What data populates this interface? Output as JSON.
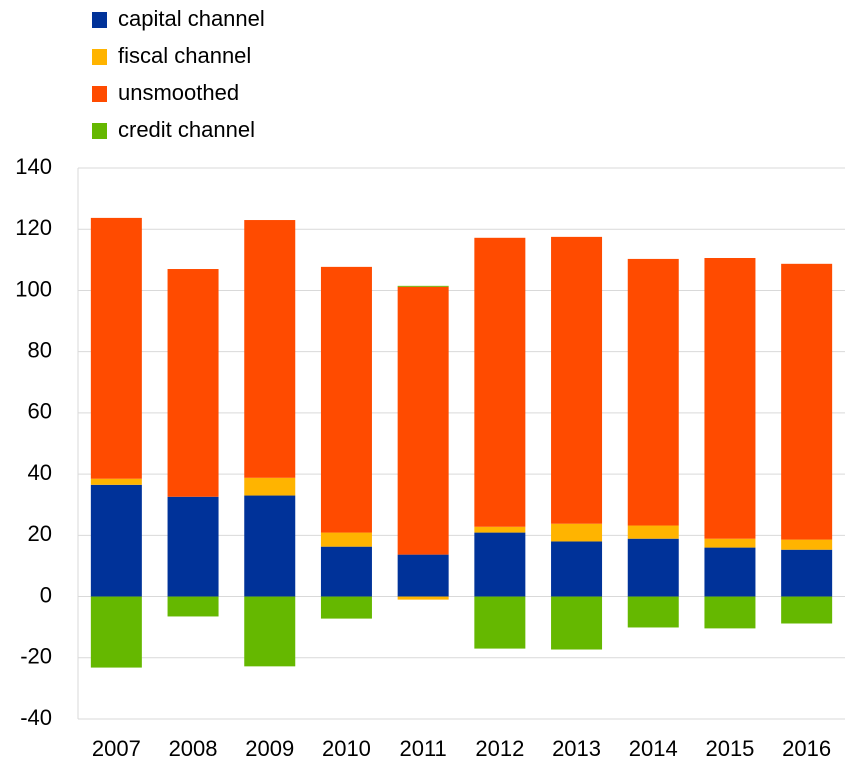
{
  "chart_data": {
    "type": "bar",
    "stacked": true,
    "categories": [
      "2007",
      "2008",
      "2009",
      "2010",
      "2011",
      "2012",
      "2013",
      "2014",
      "2015",
      "2016"
    ],
    "series": [
      {
        "name": "capital channel",
        "color": "#003299",
        "values": [
          36.5,
          32.6,
          33,
          16.3,
          13.7,
          20.9,
          18,
          18.9,
          16,
          15.3
        ]
      },
      {
        "name": "fiscal channel",
        "color": "#ffb400",
        "values": [
          2,
          0,
          5.8,
          4.6,
          -1,
          1.9,
          5.8,
          4.3,
          2.9,
          3.3
        ]
      },
      {
        "name": "unsmoothed",
        "color": "#ff4b00",
        "values": [
          85.2,
          74.4,
          84.2,
          86.8,
          87.5,
          94.4,
          93.7,
          87.1,
          91.7,
          90.1
        ]
      },
      {
        "name": "credit channel",
        "color": "#65b800",
        "values": [
          -23.2,
          -6.5,
          -22.8,
          -7.2,
          0.3,
          -17,
          -17.3,
          -10.1,
          -10.4,
          -8.8
        ]
      }
    ],
    "ylim": [
      -40,
      140
    ],
    "yticks": [
      -40,
      -20,
      0,
      20,
      40,
      60,
      80,
      100,
      120,
      140
    ],
    "grid": true,
    "legend": "top-left"
  }
}
